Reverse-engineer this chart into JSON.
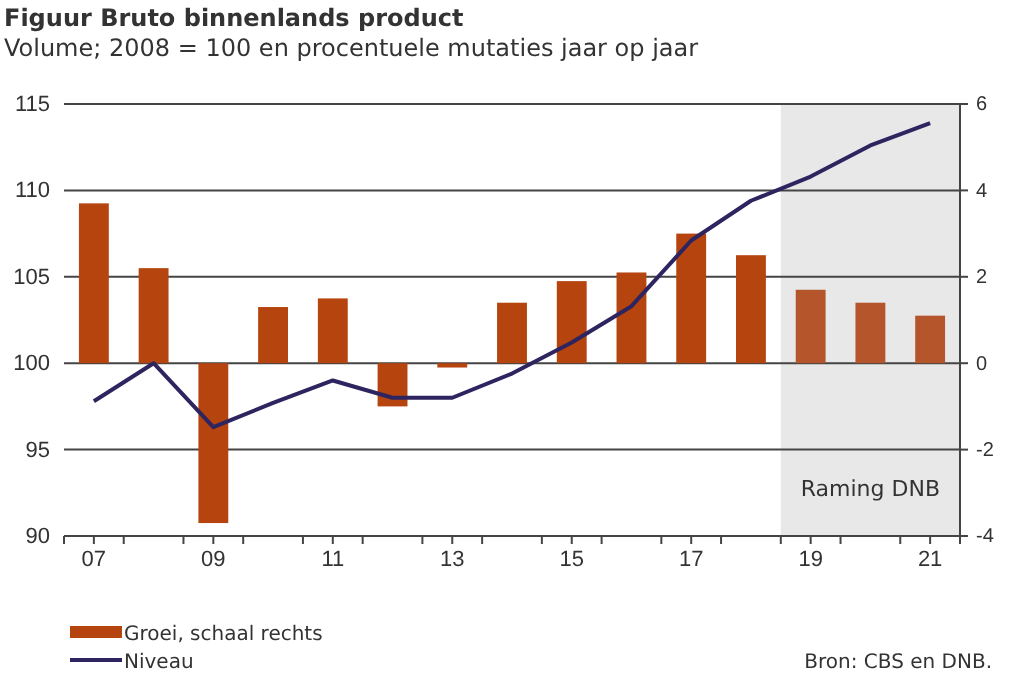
{
  "chart_data": {
    "type": "bar",
    "title": "Figuur Bruto binnenlands product",
    "subtitle": "Volume; 2008 = 100 en procentuele mutaties jaar op jaar",
    "x": [
      2007,
      2008,
      2009,
      2010,
      2011,
      2012,
      2013,
      2014,
      2015,
      2016,
      2017,
      2018,
      2019,
      2020,
      2021
    ],
    "xlim": [
      2006.5,
      2021.5
    ],
    "xticks": [
      {
        "value": 2006.5,
        "label": null
      },
      {
        "value": 2007,
        "label": "07"
      },
      {
        "value": 2007.5,
        "label": null
      },
      {
        "value": 2008.5,
        "label": null
      },
      {
        "value": 2009,
        "label": "09"
      },
      {
        "value": 2009.5,
        "label": null
      },
      {
        "value": 2010.5,
        "label": null
      },
      {
        "value": 2011,
        "label": "11"
      },
      {
        "value": 2011.5,
        "label": null
      },
      {
        "value": 2012.5,
        "label": null
      },
      {
        "value": 2013,
        "label": "13"
      },
      {
        "value": 2013.5,
        "label": null
      },
      {
        "value": 2014.5,
        "label": null
      },
      {
        "value": 2015,
        "label": "15"
      },
      {
        "value": 2015.5,
        "label": null
      },
      {
        "value": 2016.5,
        "label": null
      },
      {
        "value": 2017,
        "label": "17"
      },
      {
        "value": 2017.5,
        "label": null
      },
      {
        "value": 2018.5,
        "label": null
      },
      {
        "value": 2019,
        "label": "19"
      },
      {
        "value": 2019.5,
        "label": null
      },
      {
        "value": 2020.5,
        "label": null
      },
      {
        "value": 2021,
        "label": "21"
      },
      {
        "value": 2021.5,
        "label": null
      }
    ],
    "ylim": [
      90,
      115
    ],
    "yticks": [
      90,
      95,
      100,
      105,
      110,
      115
    ],
    "y2lim": [
      -4,
      6
    ],
    "y2ticks": [
      -4,
      -2,
      0,
      2,
      4,
      6
    ],
    "series": [
      {
        "name": "Groei, schaal rechts",
        "axis": "y2",
        "color": "#b5440f",
        "colors": [
          "#b5440f",
          "#b5440f",
          "#b5440f",
          "#b5440f",
          "#b5440f",
          "#b5440f",
          "#b5440f",
          "#b5440f",
          "#b5440f",
          "#b5440f",
          "#b5440f",
          "#b5440f",
          "#b4552b",
          "#b4552b",
          "#b4552b"
        ],
        "values": [
          3.7,
          2.2,
          -3.7,
          1.3,
          1.5,
          -1.0,
          -0.1,
          1.4,
          1.9,
          2.1,
          3.0,
          2.5,
          1.7,
          1.4,
          1.1
        ]
      },
      {
        "name": "Niveau",
        "type": "line",
        "axis": "y",
        "color": "#2e2560",
        "values": [
          97.8,
          100,
          96.3,
          97.7,
          99.0,
          98.0,
          98.0,
          99.4,
          101.2,
          103.3,
          107.1,
          109.4,
          110.8,
          112.6,
          113.9
        ]
      }
    ],
    "bands": [
      {
        "axis": "x",
        "from": 2018.5,
        "to": 2021.5,
        "label": "Raming DNB",
        "color": "#e8e8e8"
      }
    ],
    "grid": "y",
    "legend": "bottom left",
    "marker": "none",
    "line_style": "solid",
    "annotations": [
      "Bron: CBS en DNB."
    ]
  }
}
